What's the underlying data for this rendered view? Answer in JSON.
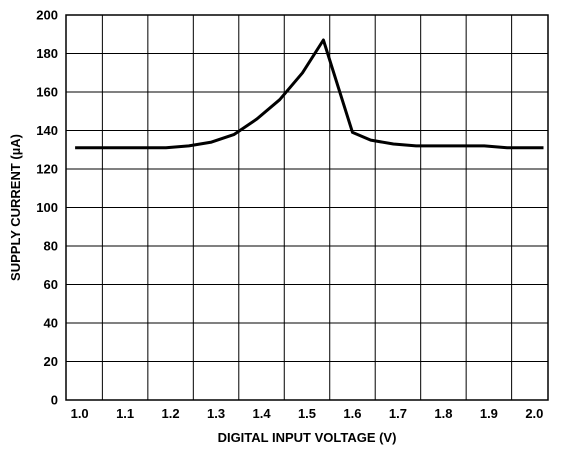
{
  "chart_data": {
    "type": "line",
    "title": "",
    "xlabel": "DIGITAL INPUT VOLTAGE (V)",
    "ylabel": "SUPPLY CURRENT (µA)",
    "xlim": [
      0.97,
      2.03
    ],
    "ylim": [
      0,
      200
    ],
    "grid": true,
    "legend": "none",
    "x_ticks": [
      {
        "value": 1.0,
        "label": "1.0"
      },
      {
        "value": 1.1,
        "label": "1.1"
      },
      {
        "value": 1.2,
        "label": "1.2"
      },
      {
        "value": 1.3,
        "label": "1.3"
      },
      {
        "value": 1.4,
        "label": "1.4"
      },
      {
        "value": 1.5,
        "label": "1.5"
      },
      {
        "value": 1.6,
        "label": "1.6"
      },
      {
        "value": 1.7,
        "label": "1.7"
      },
      {
        "value": 1.8,
        "label": "1.8"
      },
      {
        "value": 1.9,
        "label": "1.9"
      },
      {
        "value": 2.0,
        "label": "2.0"
      }
    ],
    "y_ticks": [
      {
        "value": 0,
        "label": "0"
      },
      {
        "value": 20,
        "label": "20"
      },
      {
        "value": 40,
        "label": "40"
      },
      {
        "value": 60,
        "label": "60"
      },
      {
        "value": 80,
        "label": "80"
      },
      {
        "value": 100,
        "label": "100"
      },
      {
        "value": 120,
        "label": "120"
      },
      {
        "value": 140,
        "label": "140"
      },
      {
        "value": 160,
        "label": "160"
      },
      {
        "value": 180,
        "label": "180"
      },
      {
        "value": 200,
        "label": "200"
      }
    ],
    "series": [
      {
        "color": "#000000",
        "x": [
          0.99,
          1.1,
          1.19,
          1.24,
          1.29,
          1.34,
          1.39,
          1.44,
          1.49,
          1.536,
          1.6,
          1.64,
          1.69,
          1.74,
          1.79,
          1.89,
          1.94,
          1.99,
          2.02
        ],
        "y": [
          131,
          131,
          131,
          132,
          134,
          138,
          146,
          156,
          170,
          187,
          139,
          135,
          133,
          132,
          132,
          132,
          131,
          131,
          131
        ]
      }
    ]
  }
}
